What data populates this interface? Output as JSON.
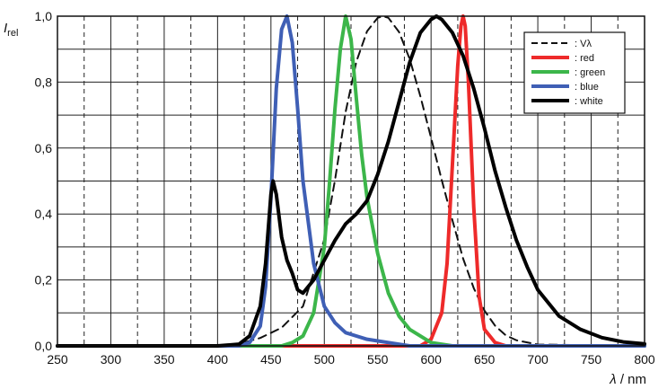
{
  "chart_data": {
    "type": "line",
    "title": "",
    "xlabel": "λ / nm",
    "ylabel": "I_rel",
    "xlim": [
      250,
      800
    ],
    "ylim": [
      0,
      1
    ],
    "grid": true,
    "legend_position": "top-right",
    "x_ticks": [
      "250",
      "300",
      "350",
      "400",
      "450",
      "500",
      "550",
      "600",
      "650",
      "700",
      "750",
      "800"
    ],
    "y_ticks": [
      "0,0",
      "0,2",
      "0,4",
      "0,6",
      "0,8",
      "1,0"
    ],
    "series": [
      {
        "name": "Vλ",
        "color": "#111111",
        "dashed": true,
        "x": [
          250,
          380,
          400,
          420,
          440,
          460,
          480,
          500,
          510,
          520,
          530,
          540,
          550,
          555,
          560,
          570,
          580,
          590,
          600,
          610,
          620,
          630,
          640,
          650,
          660,
          670,
          680,
          700,
          800
        ],
        "y": [
          0,
          0,
          0.001,
          0.006,
          0.024,
          0.055,
          0.12,
          0.323,
          0.503,
          0.71,
          0.862,
          0.954,
          0.995,
          1.0,
          0.995,
          0.952,
          0.87,
          0.757,
          0.631,
          0.503,
          0.381,
          0.265,
          0.175,
          0.107,
          0.061,
          0.032,
          0.017,
          0.004,
          0
        ]
      },
      {
        "name": "red",
        "color": "#ee2a2a",
        "dashed": false,
        "x": [
          250,
          590,
          600,
          610,
          615,
          620,
          625,
          628,
          630,
          632,
          635,
          640,
          645,
          650,
          660,
          670,
          800
        ],
        "y": [
          0,
          0,
          0.02,
          0.1,
          0.25,
          0.55,
          0.85,
          0.97,
          1.0,
          0.97,
          0.8,
          0.42,
          0.15,
          0.05,
          0.01,
          0,
          0
        ]
      },
      {
        "name": "green",
        "color": "#3cb64a",
        "dashed": false,
        "x": [
          250,
          460,
          470,
          480,
          490,
          500,
          505,
          510,
          515,
          520,
          525,
          530,
          535,
          540,
          550,
          560,
          570,
          580,
          600,
          620,
          800
        ],
        "y": [
          0,
          0,
          0.01,
          0.03,
          0.1,
          0.3,
          0.5,
          0.72,
          0.9,
          1.0,
          0.93,
          0.75,
          0.58,
          0.45,
          0.28,
          0.16,
          0.09,
          0.05,
          0.01,
          0,
          0
        ]
      },
      {
        "name": "blue",
        "color": "#3f5fb5",
        "dashed": false,
        "x": [
          250,
          420,
          430,
          440,
          445,
          450,
          455,
          460,
          465,
          470,
          475,
          480,
          490,
          500,
          510,
          520,
          530,
          540,
          560,
          580,
          800
        ],
        "y": [
          0,
          0,
          0.01,
          0.06,
          0.18,
          0.45,
          0.78,
          0.96,
          1.0,
          0.92,
          0.72,
          0.5,
          0.25,
          0.12,
          0.07,
          0.04,
          0.03,
          0.02,
          0.01,
          0,
          0
        ]
      },
      {
        "name": "white",
        "color": "#000000",
        "dashed": false,
        "x": [
          250,
          400,
          420,
          430,
          440,
          445,
          450,
          452,
          455,
          460,
          465,
          470,
          475,
          480,
          490,
          500,
          510,
          520,
          530,
          540,
          550,
          560,
          570,
          580,
          590,
          600,
          605,
          610,
          620,
          630,
          640,
          650,
          660,
          670,
          680,
          690,
          700,
          720,
          740,
          760,
          780,
          800
        ],
        "y": [
          0,
          0,
          0.005,
          0.03,
          0.12,
          0.25,
          0.46,
          0.5,
          0.46,
          0.33,
          0.26,
          0.22,
          0.17,
          0.16,
          0.2,
          0.26,
          0.32,
          0.37,
          0.4,
          0.44,
          0.52,
          0.62,
          0.74,
          0.86,
          0.95,
          0.99,
          1.0,
          0.99,
          0.95,
          0.88,
          0.78,
          0.66,
          0.53,
          0.42,
          0.32,
          0.24,
          0.17,
          0.09,
          0.05,
          0.025,
          0.012,
          0.006
        ]
      }
    ]
  }
}
